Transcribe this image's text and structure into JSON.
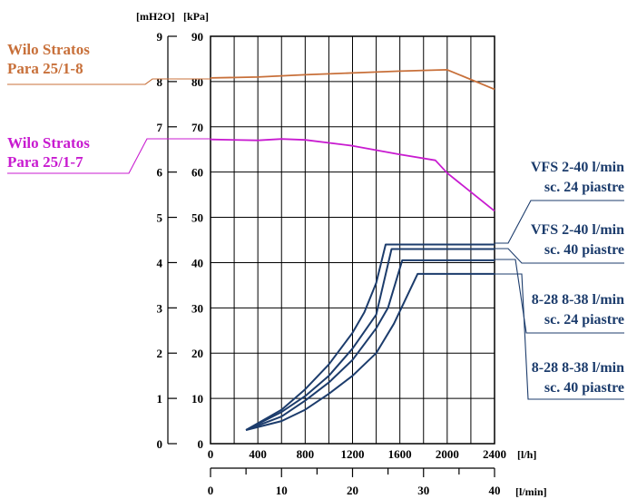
{
  "chart_data": {
    "type": "line",
    "units": {
      "head_m": "[mH2O]",
      "pressure": "[kPa]",
      "flow_lh": "[l/h]",
      "flow_lmin": "[l/min]"
    },
    "y_left": {
      "ticks": [
        "0",
        "1",
        "2",
        "3",
        "4",
        "5",
        "6",
        "7",
        "8",
        "9"
      ],
      "range": [
        0,
        9
      ]
    },
    "y_right": {
      "ticks": [
        "0",
        "10",
        "20",
        "30",
        "40",
        "50",
        "60",
        "70",
        "80",
        "90"
      ],
      "range": [
        0,
        90
      ]
    },
    "x_top": {
      "ticks": [
        "0",
        "400",
        "800",
        "1200",
        "1600",
        "2000",
        "2400"
      ],
      "range": [
        0,
        2400
      ]
    },
    "x_bottom": {
      "ticks": [
        "0",
        "10",
        "20",
        "30",
        "40"
      ],
      "range": [
        0,
        40
      ]
    },
    "grid": true,
    "colors": {
      "pump1": "#c8703a",
      "pump2": "#c81bd0",
      "curves": "#1c3c6c",
      "grid": "#000000"
    },
    "series": [
      {
        "name": "Wilo Stratos Para 25/1-8",
        "label_lines": [
          "Wilo Stratos",
          "Para 25/1-8"
        ],
        "color": "#c8703a",
        "kind": "pump",
        "points": [
          [
            0,
            80.8
          ],
          [
            400,
            81.0
          ],
          [
            800,
            81.5
          ],
          [
            1200,
            81.9
          ],
          [
            1600,
            82.3
          ],
          [
            2000,
            82.6
          ],
          [
            2400,
            78.3
          ]
        ]
      },
      {
        "name": "Wilo Stratos Para 25/1-7",
        "label_lines": [
          "Wilo Stratos",
          "Para 25/1-7"
        ],
        "color": "#c81bd0",
        "kind": "pump",
        "points": [
          [
            0,
            67.2
          ],
          [
            400,
            67.0
          ],
          [
            600,
            67.3
          ],
          [
            800,
            67.1
          ],
          [
            1200,
            65.8
          ],
          [
            1600,
            63.9
          ],
          [
            1900,
            62.6
          ],
          [
            2000,
            59.8
          ],
          [
            2400,
            51.4
          ]
        ]
      },
      {
        "name": "VFS 2-40 l/min sc. 24 piastre",
        "label_lines": [
          "VFS 2-40 l/min",
          "sc. 24 piastre"
        ],
        "color": "#1c3c6c",
        "kind": "resistance",
        "points": [
          [
            300,
            3.0
          ],
          [
            600,
            7.5
          ],
          [
            800,
            12.0
          ],
          [
            1000,
            17.5
          ],
          [
            1200,
            24.5
          ],
          [
            1300,
            29.0
          ],
          [
            1400,
            35.5
          ],
          [
            1480,
            44.0
          ],
          [
            2400,
            44.0
          ]
        ]
      },
      {
        "name": "VFS 2-40 l/min sc. 40 piastre",
        "label_lines": [
          "VFS 2-40 l/min",
          "sc. 40 piastre"
        ],
        "color": "#1c3c6c",
        "kind": "resistance",
        "points": [
          [
            300,
            3.0
          ],
          [
            600,
            7.0
          ],
          [
            800,
            10.5
          ],
          [
            1000,
            15.0
          ],
          [
            1200,
            21.0
          ],
          [
            1400,
            28.5
          ],
          [
            1530,
            43.0
          ],
          [
            2400,
            43.0
          ]
        ]
      },
      {
        "name": "8-28 8-38 l/min sc. 24 piastre",
        "label_lines": [
          "8-28 8-38 l/min",
          "sc. 24 piastre"
        ],
        "color": "#1c3c6c",
        "kind": "resistance",
        "points": [
          [
            300,
            3.0
          ],
          [
            600,
            6.0
          ],
          [
            800,
            9.5
          ],
          [
            1000,
            13.5
          ],
          [
            1200,
            18.5
          ],
          [
            1400,
            25.5
          ],
          [
            1500,
            30.0
          ],
          [
            1620,
            40.5
          ],
          [
            2400,
            40.5
          ]
        ]
      },
      {
        "name": "8-28 8-38 l/min sc. 40 piastre",
        "label_lines": [
          "8-28 8-38 l/min",
          "sc. 40 piastre"
        ],
        "color": "#1c3c6c",
        "kind": "resistance",
        "points": [
          [
            300,
            3.0
          ],
          [
            600,
            5.0
          ],
          [
            800,
            7.5
          ],
          [
            1000,
            11.0
          ],
          [
            1200,
            15.0
          ],
          [
            1400,
            20.0
          ],
          [
            1550,
            26.5
          ],
          [
            1750,
            37.5
          ],
          [
            2400,
            37.5
          ]
        ]
      }
    ]
  }
}
